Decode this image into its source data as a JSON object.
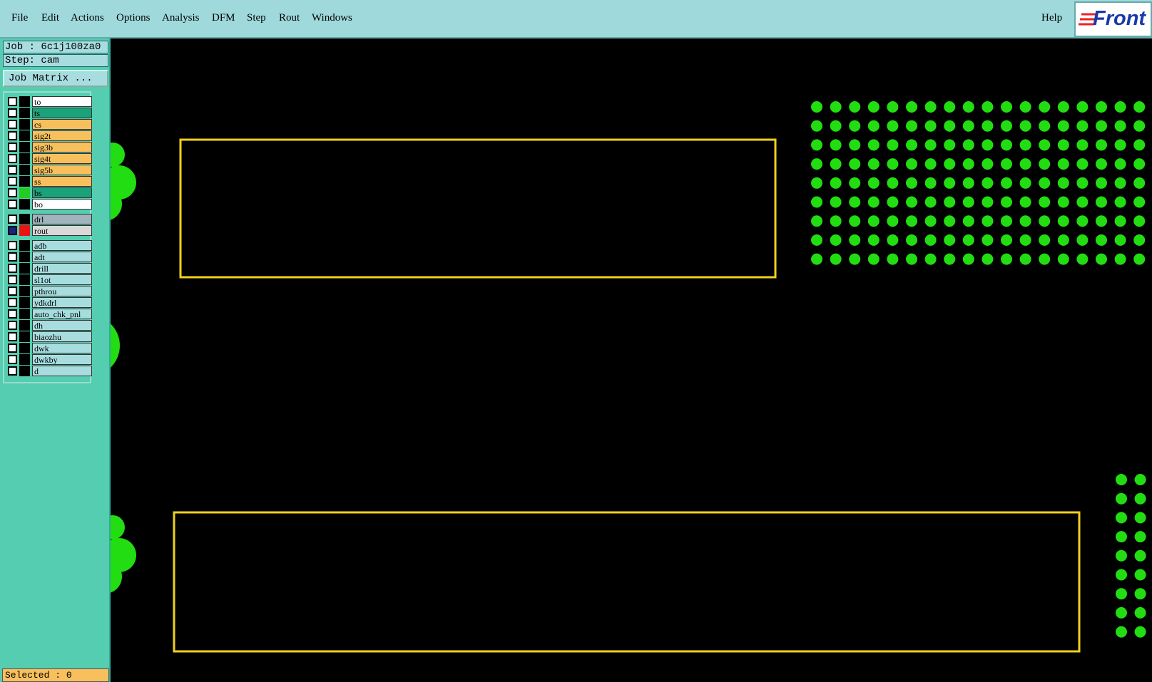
{
  "menu": {
    "items": [
      "File",
      "Edit",
      "Actions",
      "Options",
      "Analysis",
      "DFM",
      "Step",
      "Rout",
      "Windows"
    ],
    "help": "Help",
    "logo": "Front"
  },
  "job": {
    "job_label": "Job : 6c1j100za0",
    "step_label": "Step: cam",
    "matrix_button": "Job Matrix ..."
  },
  "layer_groups": [
    [
      {
        "name": "to",
        "color": "#ffffff"
      },
      {
        "name": "ts",
        "color": "#1aa37a"
      },
      {
        "name": "cs",
        "color": "#f7c05c"
      },
      {
        "name": "sig2t",
        "color": "#f7c05c"
      },
      {
        "name": "sig3b",
        "color": "#f7c05c"
      },
      {
        "name": "sig4t",
        "color": "#f7c05c"
      },
      {
        "name": "sig5b",
        "color": "#f7c05c"
      },
      {
        "name": "ss",
        "color": "#f7c05c"
      },
      {
        "name": "bs",
        "color": "#1aa37a",
        "swatch": "#22cc22"
      },
      {
        "name": "bo",
        "color": "#ffffff"
      }
    ],
    [
      {
        "name": "drl",
        "color": "#9fb4bc"
      },
      {
        "name": "rout",
        "color": "#d8d8d8",
        "swatch": "#ee1111"
      }
    ],
    [
      {
        "name": "adb",
        "color": "#a8dde0"
      },
      {
        "name": "adt",
        "color": "#a8dde0"
      },
      {
        "name": "drill",
        "color": "#a8dde0"
      },
      {
        "name": "sl1ot",
        "color": "#a8dde0"
      },
      {
        "name": "pthrou",
        "color": "#a8dde0"
      },
      {
        "name": "ydkdrl",
        "color": "#a8dde0"
      },
      {
        "name": "auto_chk_pnl",
        "color": "#a8dde0"
      },
      {
        "name": "dh",
        "color": "#a8dde0"
      },
      {
        "name": "biaozhu",
        "color": "#a8dde0"
      },
      {
        "name": "dwk",
        "color": "#a8dde0"
      },
      {
        "name": "dwkby",
        "color": "#a8dde0"
      },
      {
        "name": "d",
        "color": "#a8dde0"
      }
    ]
  ],
  "status": {
    "selected": "Selected : 0"
  }
}
